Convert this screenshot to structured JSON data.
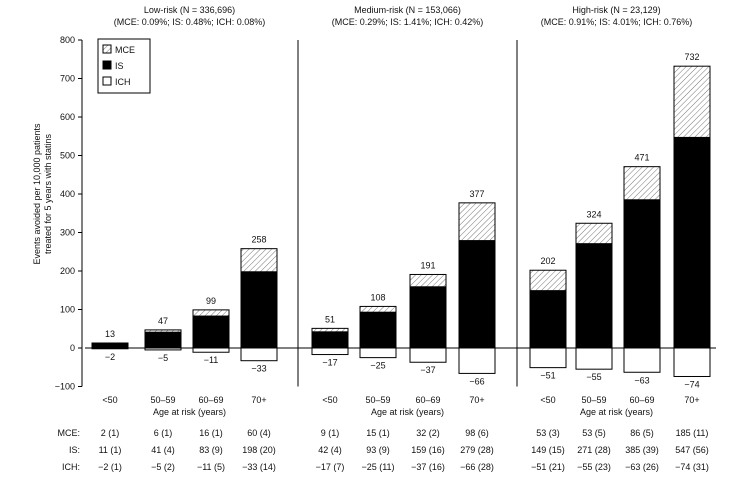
{
  "chart_data": {
    "type": "bar",
    "stacked": true,
    "ylabel": "Events avoided per 10,000 patients treated for 5 years with statins",
    "xlabel": "Age at risk (years)",
    "ylim": [
      -100,
      800
    ],
    "yticks": [
      -100,
      0,
      100,
      200,
      300,
      400,
      500,
      600,
      700,
      800
    ],
    "legend": {
      "placement": "top-left",
      "entries": [
        "MCE",
        "IS",
        "ICH"
      ]
    },
    "categories": [
      "<50",
      "50–59",
      "60–69",
      "70+"
    ],
    "panels": [
      {
        "title": "Low-risk (N = 336,696)",
        "subtitle": "(MCE: 0.09%; IS: 0.48%; ICH: 0.08%)",
        "MCE": [
          2,
          6,
          16,
          60
        ],
        "IS": [
          11,
          41,
          83,
          198
        ],
        "ICH": [
          -2,
          -5,
          -11,
          -33
        ],
        "totals": [
          "13",
          "47",
          "99",
          "258"
        ],
        "table": {
          "MCE": [
            "2 (1)",
            "6 (1)",
            "16 (1)",
            "60 (4)"
          ],
          "IS": [
            "11 (1)",
            "41 (4)",
            "83 (9)",
            "198 (20)"
          ],
          "ICH": [
            "−2 (1)",
            "−5 (2)",
            "−11 (5)",
            "−33 (14)"
          ]
        }
      },
      {
        "title": "Medium-risk (N = 153,066)",
        "subtitle": "(MCE: 0.29%; IS: 1.41%; ICH: 0.42%)",
        "MCE": [
          9,
          15,
          32,
          98
        ],
        "IS": [
          42,
          93,
          159,
          279
        ],
        "ICH": [
          -17,
          -25,
          -37,
          -66
        ],
        "totals": [
          "51",
          "108",
          "191",
          "377"
        ],
        "table": {
          "MCE": [
            "9 (1)",
            "15 (1)",
            "32 (2)",
            "98 (6)"
          ],
          "IS": [
            "42 (4)",
            "93 (9)",
            "159 (16)",
            "279 (28)"
          ],
          "ICH": [
            "−17 (7)",
            "−25 (11)",
            "−37 (16)",
            "−66 (28)"
          ]
        }
      },
      {
        "title": "High-risk (N = 23,129)",
        "subtitle": "(MCE: 0.91%; IS: 4.01%; ICH: 0.76%)",
        "MCE": [
          53,
          53,
          86,
          185
        ],
        "IS": [
          149,
          271,
          385,
          547
        ],
        "ICH": [
          -51,
          -55,
          -63,
          -74
        ],
        "totals": [
          "202",
          "324",
          "471",
          "732"
        ],
        "table": {
          "MCE": [
            "53 (3)",
            "53 (5)",
            "86 (5)",
            "185 (11)"
          ],
          "IS": [
            "149 (15)",
            "271 (28)",
            "385 (39)",
            "547 (56)"
          ],
          "ICH": [
            "−51 (21)",
            "−55 (23)",
            "−63 (26)",
            "−74 (31)"
          ]
        }
      }
    ],
    "table_row_labels": [
      "MCE:",
      "IS:",
      "ICH:"
    ]
  }
}
